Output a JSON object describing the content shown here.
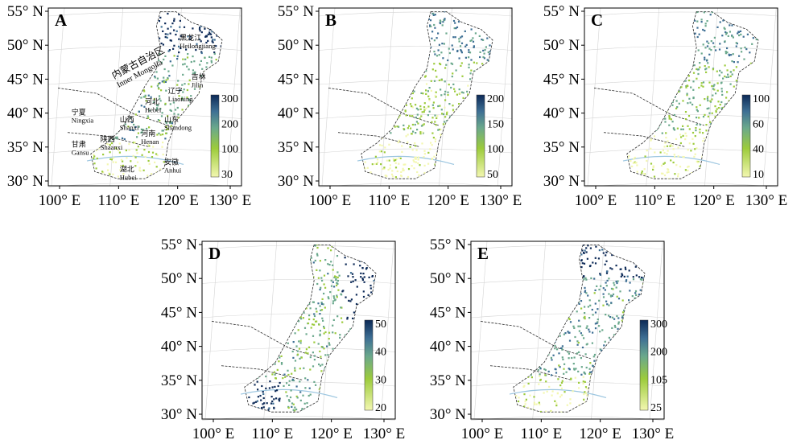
{
  "panels": [
    {
      "id": "A",
      "label": "A",
      "lat_ticks": [
        "55° N",
        "50° N",
        "45° N",
        "40° N",
        "35° N",
        "30° N"
      ],
      "lon_ticks": [
        "100° E",
        "110° E",
        "120° E",
        "130° E"
      ],
      "colorbar": {
        "ticks": [
          "300",
          "200",
          "100",
          "30"
        ]
      },
      "regions": [
        {
          "zh": "黑龙江",
          "en": "Heilongjiang"
        },
        {
          "zh": "吉林",
          "en": "Jilin"
        },
        {
          "zh": "辽宁",
          "en": "Liaoning"
        },
        {
          "zh": "河北",
          "en": "Hebei"
        },
        {
          "zh": "山东",
          "en": "Shandong"
        },
        {
          "zh": "山西",
          "en": "Shanxi"
        },
        {
          "zh": "河南",
          "en": "Henan"
        },
        {
          "zh": "陕西",
          "en": "Shaanxi"
        },
        {
          "zh": "宁夏",
          "en": "Ningxia"
        },
        {
          "zh": "甘肃",
          "en": "Gansu"
        },
        {
          "zh": "湖北",
          "en": "Hubei"
        },
        {
          "zh": "安徽",
          "en": "Anhui"
        },
        {
          "zh": "内蒙古自治区",
          "en": "Inner Mongolia"
        }
      ]
    },
    {
      "id": "B",
      "label": "B",
      "lat_ticks": [
        "55° N",
        "50° N",
        "45° N",
        "40° N",
        "35° N",
        "30° N"
      ],
      "lon_ticks": [
        "100° E",
        "110° E",
        "120° E",
        "130° E"
      ],
      "colorbar": {
        "ticks": [
          "200",
          "150",
          "100",
          "50"
        ]
      }
    },
    {
      "id": "C",
      "label": "C",
      "lat_ticks": [
        "55° N",
        "50° N",
        "45° N",
        "40° N",
        "35° N",
        "30° N"
      ],
      "lon_ticks": [
        "100° E",
        "110° E",
        "120° E",
        "130° E"
      ],
      "colorbar": {
        "ticks": [
          "100",
          "60",
          "40",
          "10"
        ]
      }
    },
    {
      "id": "D",
      "label": "D",
      "lat_ticks": [
        "55° N",
        "50° N",
        "45° N",
        "40° N",
        "35° N",
        "30° N"
      ],
      "lon_ticks": [
        "100° E",
        "110° E",
        "120° E",
        "130° E"
      ],
      "colorbar": {
        "ticks": [
          "50",
          "40",
          "30",
          "20"
        ]
      }
    },
    {
      "id": "E",
      "label": "E",
      "lat_ticks": [
        "55° N",
        "50° N",
        "45° N",
        "40° N",
        "35° N",
        "30° N"
      ],
      "lon_ticks": [
        "100° E",
        "110° E",
        "120° E",
        "130° E"
      ],
      "colorbar": {
        "ticks": [
          "300",
          "200",
          "105",
          "25"
        ]
      }
    }
  ],
  "colors": {
    "low": "#f3f7b0",
    "mid_low": "#9ccb3c",
    "mid": "#6aa88c",
    "mid_high": "#3e6f94",
    "high": "#0d2a57",
    "boundary": "#2b2b2b",
    "grid": "#d4d4d4",
    "river": "#9cc6e0"
  }
}
